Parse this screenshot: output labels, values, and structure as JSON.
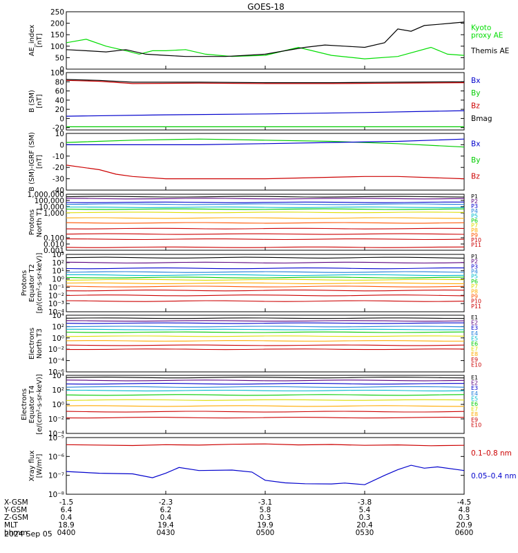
{
  "title": "GOES-18",
  "date_label": "2024 Sep 05",
  "chart_data": [
    {
      "type": "line",
      "ylabel": "AE_index\n[nT]",
      "ylim": [
        0,
        250
      ],
      "ticks": [
        "250",
        "200",
        "150",
        "100",
        "50",
        "0"
      ],
      "tick_values": [
        250,
        200,
        150,
        100,
        50,
        0
      ],
      "legend": [
        {
          "name": "Kyoto\nproxy AE",
          "color": "#00dd00"
        },
        {
          "name": "Themis AE",
          "color": "#000000"
        }
      ],
      "series": [
        {
          "name": "Kyoto proxy AE",
          "color": "#00dd00",
          "x": [
            0,
            6,
            12,
            18,
            22,
            26,
            30,
            36,
            42,
            50,
            60,
            70,
            80,
            90,
            100,
            110,
            115,
            120
          ],
          "values": [
            115,
            130,
            100,
            80,
            65,
            80,
            80,
            85,
            65,
            55,
            60,
            95,
            60,
            45,
            55,
            95,
            65,
            60
          ]
        },
        {
          "name": "Themis AE",
          "color": "#000000",
          "x": [
            0,
            6,
            12,
            18,
            24,
            30,
            36,
            42,
            48,
            54,
            60,
            66,
            72,
            78,
            84,
            90,
            96,
            100,
            104,
            108,
            112,
            116,
            120
          ],
          "values": [
            85,
            80,
            75,
            85,
            65,
            60,
            55,
            55,
            55,
            60,
            65,
            80,
            95,
            105,
            100,
            95,
            115,
            175,
            165,
            190,
            195,
            200,
            205
          ]
        }
      ]
    },
    {
      "type": "line",
      "ylabel": "B (SM)\n[nT]",
      "ylim": [
        -25,
        100
      ],
      "ticks": [
        "100",
        "80",
        "60",
        "40",
        "20",
        "0",
        "-20"
      ],
      "tick_values": [
        100,
        80,
        60,
        40,
        20,
        0,
        -20
      ],
      "legend": [
        {
          "name": "Bx",
          "color": "#0000cc"
        },
        {
          "name": "By",
          "color": "#00cc00"
        },
        {
          "name": "Bz",
          "color": "#cc0000"
        },
        {
          "name": "Bmag",
          "color": "#000000"
        }
      ],
      "series": [
        {
          "name": "Bmag",
          "color": "#000000",
          "x": [
            0,
            10,
            20,
            40,
            60,
            80,
            100,
            120
          ],
          "values": [
            85,
            83,
            79,
            79,
            78,
            78,
            79,
            80
          ]
        },
        {
          "name": "Bz",
          "color": "#cc0000",
          "x": [
            0,
            10,
            20,
            40,
            60,
            80,
            100,
            120
          ],
          "values": [
            83,
            81,
            76,
            77,
            76,
            76,
            77,
            78
          ]
        },
        {
          "name": "Bx",
          "color": "#0000cc",
          "x": [
            0,
            30,
            60,
            90,
            120
          ],
          "values": [
            5,
            8,
            10,
            13,
            17
          ]
        },
        {
          "name": "By",
          "color": "#00cc00",
          "x": [
            0,
            30,
            60,
            90,
            120
          ],
          "values": [
            -18,
            -18,
            -18,
            -18,
            -18
          ]
        }
      ]
    },
    {
      "type": "line",
      "ylabel": "B (SM)-IGRF (SM)\n[nT]",
      "ylim": [
        -40,
        10
      ],
      "ticks": [
        "10",
        "0",
        "-10",
        "-20",
        "-30",
        "-40"
      ],
      "tick_values": [
        10,
        0,
        -10,
        -20,
        -30,
        -40
      ],
      "legend": [
        {
          "name": "Bx",
          "color": "#0000cc"
        },
        {
          "name": "By",
          "color": "#00cc00"
        },
        {
          "name": "Bz",
          "color": "#cc0000"
        }
      ],
      "series": [
        {
          "name": "By",
          "color": "#00cc00",
          "x": [
            0,
            20,
            40,
            60,
            80,
            100,
            120
          ],
          "values": [
            2,
            4,
            5,
            4,
            3,
            1,
            -2
          ]
        },
        {
          "name": "Bx",
          "color": "#0000cc",
          "x": [
            0,
            20,
            40,
            60,
            80,
            100,
            120
          ],
          "values": [
            0,
            0,
            0,
            1,
            2,
            3,
            5
          ]
        },
        {
          "name": "Bz",
          "color": "#cc0000",
          "x": [
            0,
            5,
            10,
            15,
            20,
            30,
            60,
            90,
            100,
            120
          ],
          "values": [
            -18,
            -20,
            -22,
            -26,
            -28,
            -30,
            -30,
            -28,
            -28,
            -30
          ]
        }
      ]
    },
    {
      "type": "line",
      "log": true,
      "ylabel": "Protons\nNorth T1",
      "ylim": [
        0.001,
        1000000
      ],
      "ticks": [
        "1,000,000",
        "100,000",
        "10,000",
        "1,000",
        "0.100",
        "0.010",
        "0.001"
      ],
      "tick_values": [
        1000000,
        100000,
        10000,
        1000,
        0.1,
        0.01,
        0.001
      ],
      "legend": [
        {
          "name": "P1",
          "color": "#000000"
        },
        {
          "name": "P2",
          "color": "#5a0080"
        },
        {
          "name": "P3",
          "color": "#0000cc"
        },
        {
          "name": "P4",
          "color": "#1c7cdb"
        },
        {
          "name": "P5",
          "color": "#00bbcc"
        },
        {
          "name": "P6",
          "color": "#00cc00"
        },
        {
          "name": "P7",
          "color": "#dddd00"
        },
        {
          "name": "P8",
          "color": "#ffaa00"
        },
        {
          "name": "P9",
          "color": "#ff5500"
        },
        {
          "name": "P10",
          "color": "#cc0000"
        },
        {
          "name": "P11",
          "color": "#cc0000"
        }
      ],
      "levels": [
        400000,
        200000,
        50000,
        25000,
        8000,
        4000,
        1200,
        150,
        25,
        3,
        0.4,
        0.06,
        0.003
      ]
    },
    {
      "type": "line",
      "log": true,
      "ylabel": "Protons\nEquator T2\n[p/(cm²-s-sr-keV)]",
      "ylim": [
        0.0001,
        1000
      ],
      "ticks": [
        "10³",
        "10²",
        "10¹",
        "10⁰",
        "10⁻¹",
        "10⁻²",
        "10⁻³",
        "10⁻⁴"
      ],
      "tick_values": [
        1000,
        100,
        10,
        1,
        0.1,
        0.01,
        0.001,
        0.0001
      ],
      "legend": [
        {
          "name": "P1",
          "color": "#000000"
        },
        {
          "name": "P2",
          "color": "#5a0080"
        },
        {
          "name": "P3",
          "color": "#0000cc"
        },
        {
          "name": "P4",
          "color": "#1c7cdb"
        },
        {
          "name": "P5",
          "color": "#00bbcc"
        },
        {
          "name": "P6",
          "color": "#00cc00"
        },
        {
          "name": "P7",
          "color": "#dddd00"
        },
        {
          "name": "P8",
          "color": "#ffaa00"
        },
        {
          "name": "P9",
          "color": "#ff5500"
        },
        {
          "name": "P10",
          "color": "#cc0000"
        },
        {
          "name": "P11",
          "color": "#cc0000"
        }
      ],
      "levels": [
        400,
        100,
        20,
        7,
        3,
        1.5,
        0.8,
        0.3,
        0.12,
        0.04,
        0.01,
        0.002
      ]
    },
    {
      "type": "line",
      "log": true,
      "ylabel": "Electrons\nNorth T3",
      "ylim": [
        1e-06,
        10000
      ],
      "ticks": [
        "10⁴",
        "10²",
        "10⁰",
        "10⁻²",
        "10⁻⁴",
        "10⁻⁶"
      ],
      "tick_values": [
        10000,
        100,
        1,
        0.01,
        0.0001,
        1e-06
      ],
      "legend": [
        {
          "name": "E1",
          "color": "#000000"
        },
        {
          "name": "E2",
          "color": "#5a0080"
        },
        {
          "name": "E3",
          "color": "#0000cc"
        },
        {
          "name": "E4",
          "color": "#1c7cdb"
        },
        {
          "name": "E5",
          "color": "#00bbcc"
        },
        {
          "name": "E6",
          "color": "#00cc00"
        },
        {
          "name": "E7",
          "color": "#dddd00"
        },
        {
          "name": "E8",
          "color": "#ffaa00"
        },
        {
          "name": "E9",
          "color": "#cc0000"
        },
        {
          "name": "E10",
          "color": "#cc0000"
        }
      ],
      "levels": [
        3000,
        1000,
        400,
        100,
        30,
        10,
        2,
        0.3,
        0.05,
        0.01
      ]
    },
    {
      "type": "line",
      "log": true,
      "ylabel": "Electrons\nEquator T4\n[e/(cm²-s-sr-keV)]",
      "ylim": [
        0.0001,
        10000
      ],
      "ticks": [
        "10⁴",
        "10²",
        "10⁰",
        "10⁻²",
        "10⁻⁴"
      ],
      "tick_values": [
        10000,
        100,
        1,
        0.01,
        0.0001
      ],
      "legend": [
        {
          "name": "E1",
          "color": "#000000"
        },
        {
          "name": "E2",
          "color": "#5a0080"
        },
        {
          "name": "E3",
          "color": "#0000cc"
        },
        {
          "name": "E4",
          "color": "#1c7cdb"
        },
        {
          "name": "E5",
          "color": "#00bbcc"
        },
        {
          "name": "E6",
          "color": "#00cc00"
        },
        {
          "name": "E7",
          "color": "#dddd00"
        },
        {
          "name": "E8",
          "color": "#ffaa00"
        },
        {
          "name": "E9",
          "color": "#cc0000"
        },
        {
          "name": "E10",
          "color": "#cc0000"
        }
      ],
      "levels": [
        5000,
        2000,
        700,
        250,
        80,
        20,
        4,
        0.6,
        0.1,
        0.015
      ]
    },
    {
      "type": "line",
      "log": true,
      "ylabel": "Xray flux\n[W/m²]",
      "ylim": [
        1e-08,
        1e-05
      ],
      "ticks": [
        "10⁻⁵",
        "10⁻⁶",
        "10⁻⁷",
        "10⁻⁸"
      ],
      "tick_values": [
        1e-05,
        1e-06,
        1e-07,
        1e-08
      ],
      "legend": [
        {
          "name": "0.1–0.8 nm",
          "color": "#cc0000"
        },
        {
          "name": "0.05–0.4 nm",
          "color": "#0000cc"
        }
      ],
      "series": [
        {
          "name": "0.1–0.8 nm",
          "color": "#cc0000",
          "x": [
            0,
            20,
            30,
            40,
            50,
            60,
            70,
            80,
            90,
            100,
            110,
            120
          ],
          "values": [
            4.2e-06,
            3.8e-06,
            4.2e-06,
            4e-06,
            4.4e-06,
            4.6e-06,
            4.1e-06,
            4.3e-06,
            3.9e-06,
            4.1e-06,
            3.7e-06,
            3.9e-06
          ]
        },
        {
          "name": "0.05–0.4 nm",
          "color": "#0000cc",
          "x": [
            0,
            10,
            20,
            26,
            30,
            34,
            40,
            50,
            56,
            60,
            66,
            72,
            80,
            84,
            90,
            96,
            100,
            104,
            108,
            112,
            120
          ],
          "values": [
            1.6e-07,
            1.3e-07,
            1.2e-07,
            7.5e-08,
            1.3e-07,
            2.6e-07,
            1.8e-07,
            1.9e-07,
            1.5e-07,
            5.5e-08,
            4e-08,
            3.6e-08,
            3.5e-08,
            3.9e-08,
            3.2e-08,
            1e-07,
            2e-07,
            3.4e-07,
            2.4e-07,
            2.8e-07,
            1.8e-07
          ]
        }
      ]
    }
  ],
  "xaxis": {
    "row_labels": [
      "X-GSM",
      "Y-GSM",
      "Z-GSM",
      "MLT",
      "hhmm"
    ],
    "columns": [
      [
        "-1.5",
        "6.4",
        "0.4",
        "18.9",
        "0400"
      ],
      [
        "-2.3",
        "6.2",
        "0.4",
        "19.4",
        "0430"
      ],
      [
        "-3.1",
        "5.8",
        "0.3",
        "19.9",
        "0500"
      ],
      [
        "-3.8",
        "5.4",
        "0.3",
        "20.4",
        "0530"
      ],
      [
        "-4.5",
        "4.8",
        "0.3",
        "20.9",
        "0600"
      ]
    ]
  }
}
